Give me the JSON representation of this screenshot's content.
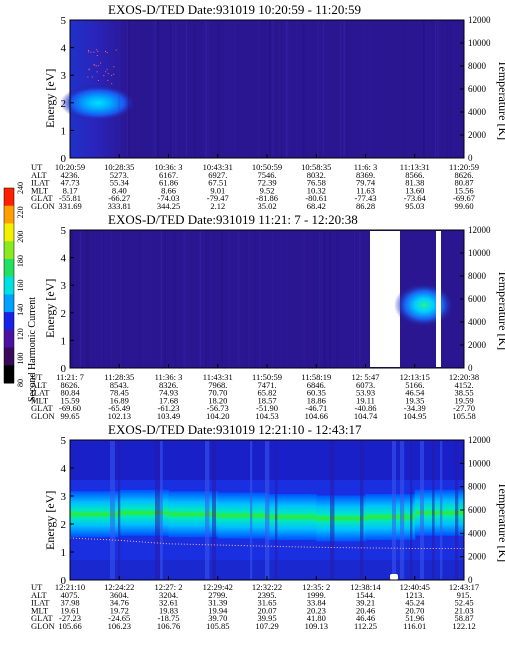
{
  "colors": {
    "bg": "#2a1690",
    "band": "#2ae62a",
    "cbar": [
      "#000000",
      "#3a0a5a",
      "#4a12a0",
      "#1a20e8",
      "#00a0ff",
      "#00e0e0",
      "#22e060",
      "#8aea22",
      "#f0f000",
      "#ffa000",
      "#ff2000"
    ]
  },
  "colorbar": {
    "label": "Second Harmonic Current",
    "ticks": [
      "80",
      "100",
      "120",
      "140",
      "160",
      "180",
      "200",
      "220",
      "240"
    ]
  },
  "panels": [
    {
      "title": "EXOS-D/TED   Date:931019  10:20:59 - 11:20:59",
      "ylabel_left": "Energy [eV]",
      "ylabel_right": "Temperature [K]",
      "yticks_left": [
        "0",
        "1",
        "2",
        "3",
        "4",
        "5"
      ],
      "yticks_right": [
        "0",
        "2000",
        "4000",
        "6000",
        "8000",
        "10000",
        "12000"
      ],
      "row_labels": [
        "UT",
        "ALT",
        "ILAT",
        "MLT",
        "GLAT",
        "GLON"
      ],
      "columns": [
        [
          "10:20:59",
          "4236.",
          "47.73",
          "8.17",
          "-55.81",
          "331.69"
        ],
        [
          "10:28:35",
          "5273.",
          "55.34",
          "8.40",
          "-66.27",
          "333.81"
        ],
        [
          "10:36: 3",
          "6167.",
          "61.86",
          "8.66",
          "-74.03",
          "344.25"
        ],
        [
          "10:43:31",
          "6927.",
          "67.51",
          "9.01",
          "-79.47",
          "2.12"
        ],
        [
          "10:50:59",
          "7546.",
          "72.39",
          "9.52",
          "-81.86",
          "35.02"
        ],
        [
          "10:58:35",
          "8032.",
          "76.58",
          "10.32",
          "-80.61",
          "68.42"
        ],
        [
          "11:6: 3",
          "8369.",
          "79.74",
          "11.63",
          "-77.43",
          "86.28"
        ],
        [
          "11:13:31",
          "8566.",
          "81.38",
          "13.60",
          "-73.64",
          "95.03"
        ],
        [
          "11:20:59",
          "8626.",
          "80.87",
          "15.56",
          "-69.67",
          "99.60"
        ]
      ]
    },
    {
      "title": "EXOS-D/TED   Date:931019  11:21: 7 - 12:20:38",
      "ylabel_left": "Energy [eV]",
      "ylabel_right": "Temperature [K]",
      "yticks_left": [
        "0",
        "1",
        "2",
        "3",
        "4",
        "5"
      ],
      "yticks_right": [
        "0",
        "2000",
        "4000",
        "6000",
        "8000",
        "10000",
        "12000"
      ],
      "row_labels": [
        "UT",
        "ALT",
        "ILAT",
        "MLT",
        "GLAT",
        "GLON"
      ],
      "columns": [
        [
          "11:21: 7",
          "8626.",
          "80.84",
          "15.59",
          "-69.60",
          "99.65"
        ],
        [
          "11:28:35",
          "8543.",
          "78.45",
          "16.89",
          "-65.49",
          "102.13"
        ],
        [
          "11:36: 3",
          "8326.",
          "74.93",
          "17.68",
          "-61.23",
          "103.49"
        ],
        [
          "11:43:31",
          "7968.",
          "70.70",
          "18.20",
          "-56.73",
          "104.20"
        ],
        [
          "11:50:59",
          "7471.",
          "65.82",
          "18.57",
          "-51.90",
          "104.53"
        ],
        [
          "11:58:19",
          "6846.",
          "60.35",
          "18.86",
          "-46.71",
          "104.66"
        ],
        [
          "12: 5:47",
          "6073.",
          "53.93",
          "19.11",
          "-40.86",
          "104.74"
        ],
        [
          "12:13:15",
          "5166.",
          "46.54",
          "19.35",
          "-34.39",
          "104.95"
        ],
        [
          "12:20:38",
          "4152.",
          "38.55",
          "19.59",
          "-27.70",
          "105.58"
        ]
      ]
    },
    {
      "title": "EXOS-D/TED   Date:931019  12:21:10 - 12:43:17",
      "ylabel_left": "Energy [eV]",
      "ylabel_right": "Temperature [K]",
      "yticks_left": [
        "0",
        "1",
        "2",
        "3",
        "4",
        "5"
      ],
      "yticks_right": [
        "0",
        "2000",
        "4000",
        "6000",
        "8000",
        "10000",
        "12000"
      ],
      "row_labels": [
        "UT",
        "ALT",
        "ILAT",
        "MLT",
        "GLAT",
        "GLON"
      ],
      "columns": [
        [
          "12:21:10",
          "4075.",
          "37.98",
          "19.61",
          "-27.23",
          "105.66"
        ],
        [
          "12:24:22",
          "3604.",
          "34.76",
          "19.72",
          "-24.65",
          "106.23"
        ],
        [
          "12:27: 2",
          "3204.",
          "32.61",
          "19.83",
          "-18.75",
          "106.76"
        ],
        [
          "12:29:42",
          "2799.",
          "31.39",
          "19.94",
          "39.70",
          "105.85"
        ],
        [
          "12:32:22",
          "2395.",
          "31.65",
          "20.07",
          "39.95",
          "107.29"
        ],
        [
          "12:35: 2",
          "1999.",
          "33.84",
          "20.23",
          "41.80",
          "109.13"
        ],
        [
          "12:38:14",
          "1544.",
          "39.21",
          "20.46",
          "46.46",
          "112.25"
        ],
        [
          "12:40:45",
          "1213.",
          "45.24",
          "20.70",
          "51.96",
          "116.01"
        ],
        [
          "12:43:17",
          "915.",
          "52.45",
          "21.03",
          "58.87",
          "122.12"
        ]
      ]
    }
  ],
  "chart_data": [
    {
      "type": "heatmap",
      "title": "EXOS-D/TED   Date:931019  10:20:59 - 11:20:59",
      "xlabel": "UT",
      "ylabel": "Energy [eV]",
      "y2label": "Temperature [K]",
      "ylim": [
        0,
        5
      ],
      "y2lim": [
        0,
        12000
      ],
      "features": [
        {
          "ut_start": "10:20:59",
          "ut_end": "10:28:35",
          "energy_center": 1.9,
          "level": "high"
        },
        {
          "ut_start": "10:28:35",
          "ut_end": "11:20:59",
          "energy_center": 0,
          "level": "background"
        }
      ]
    },
    {
      "type": "heatmap",
      "title": "EXOS-D/TED   Date:931019  11:21: 7 - 12:20:38",
      "xlabel": "UT",
      "ylabel": "Energy [eV]",
      "y2label": "Temperature [K]",
      "ylim": [
        0,
        5
      ],
      "y2lim": [
        0,
        12000
      ],
      "data_gaps": [
        [
          "12: 5:47",
          "12:13:15"
        ],
        [
          "12:20:38",
          "12:20:38"
        ]
      ],
      "features": [
        {
          "ut_start": "12:13:15",
          "ut_end": "12:20:38",
          "energy_center": 2.2,
          "level": "high"
        }
      ]
    },
    {
      "type": "heatmap",
      "title": "EXOS-D/TED   Date:931019  12:21:10 - 12:43:17",
      "xlabel": "UT",
      "ylabel": "Energy [eV]",
      "y2label": "Temperature [K]",
      "ylim": [
        0,
        5
      ],
      "y2lim": [
        0,
        12000
      ],
      "band_energy_center": [
        2.3,
        2.4,
        2.4,
        2.3,
        2.3,
        2.2,
        2.2,
        2.3,
        2.5
      ],
      "temperature_trace": [
        3600,
        3400,
        3100,
        3000,
        2900,
        2800,
        2750,
        2700,
        2700
      ]
    }
  ]
}
